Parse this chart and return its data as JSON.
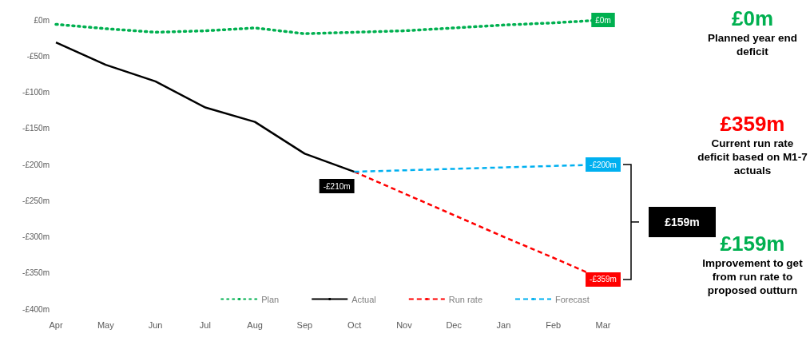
{
  "chart_data": {
    "type": "line",
    "categories": [
      "Apr",
      "May",
      "Jun",
      "Jul",
      "Aug",
      "Sep",
      "Oct",
      "Nov",
      "Dec",
      "Jan",
      "Feb",
      "Mar"
    ],
    "ylim": [
      -400,
      0
    ],
    "yticks": [
      {
        "value": 0,
        "label": "£0m"
      },
      {
        "value": -50,
        "label": "-£50m"
      },
      {
        "value": -100,
        "label": "-£100m"
      },
      {
        "value": -150,
        "label": "-£150m"
      },
      {
        "value": -200,
        "label": "-£200m"
      },
      {
        "value": -250,
        "label": "-£250m"
      },
      {
        "value": -300,
        "label": "-£300m"
      },
      {
        "value": -350,
        "label": "-£350m"
      },
      {
        "value": -400,
        "label": "-£400m"
      }
    ],
    "series": [
      {
        "name": "Plan",
        "color": "#00b050",
        "line_style": "dotted",
        "values": [
          -6,
          -12,
          -17,
          -15,
          -11,
          -19,
          -17,
          -15,
          -11,
          -7,
          -4,
          0
        ],
        "value_labels": [
          null,
          null,
          null,
          null,
          null,
          null,
          null,
          null,
          null,
          null,
          null,
          "£0m"
        ]
      },
      {
        "name": "Actual",
        "color": "#000000",
        "line_style": "solid",
        "values": [
          -31,
          -62,
          -85,
          -121,
          -141,
          -185,
          -210,
          null,
          null,
          null,
          null,
          null
        ],
        "value_labels": [
          null,
          null,
          null,
          null,
          null,
          null,
          "-£210m",
          null,
          null,
          null,
          null,
          null
        ]
      },
      {
        "name": "Run rate",
        "color": "#ff0000",
        "line_style": "dashed",
        "values": [
          null,
          null,
          null,
          null,
          null,
          null,
          -210,
          -240,
          -270,
          -300,
          -329,
          -359
        ],
        "value_labels": [
          null,
          null,
          null,
          null,
          null,
          null,
          null,
          null,
          null,
          null,
          null,
          "-£359m"
        ]
      },
      {
        "name": "Forecast",
        "color": "#00b0f0",
        "line_style": "dashed",
        "values": [
          null,
          null,
          null,
          null,
          null,
          null,
          -210,
          -208,
          -206,
          -204,
          -202,
          -200
        ],
        "value_labels": [
          null,
          null,
          null,
          null,
          null,
          null,
          null,
          null,
          null,
          null,
          null,
          "-£200m"
        ]
      }
    ],
    "annotations": [
      "£0m",
      "Planned year end deficit",
      "£359m",
      "Current run rate deficit based on M1-7 actuals",
      "£159m",
      "Improvement to get from run rate to proposed outturn",
      "£159m"
    ],
    "grid": false,
    "legend": "bottom",
    "marker": "none"
  }
}
